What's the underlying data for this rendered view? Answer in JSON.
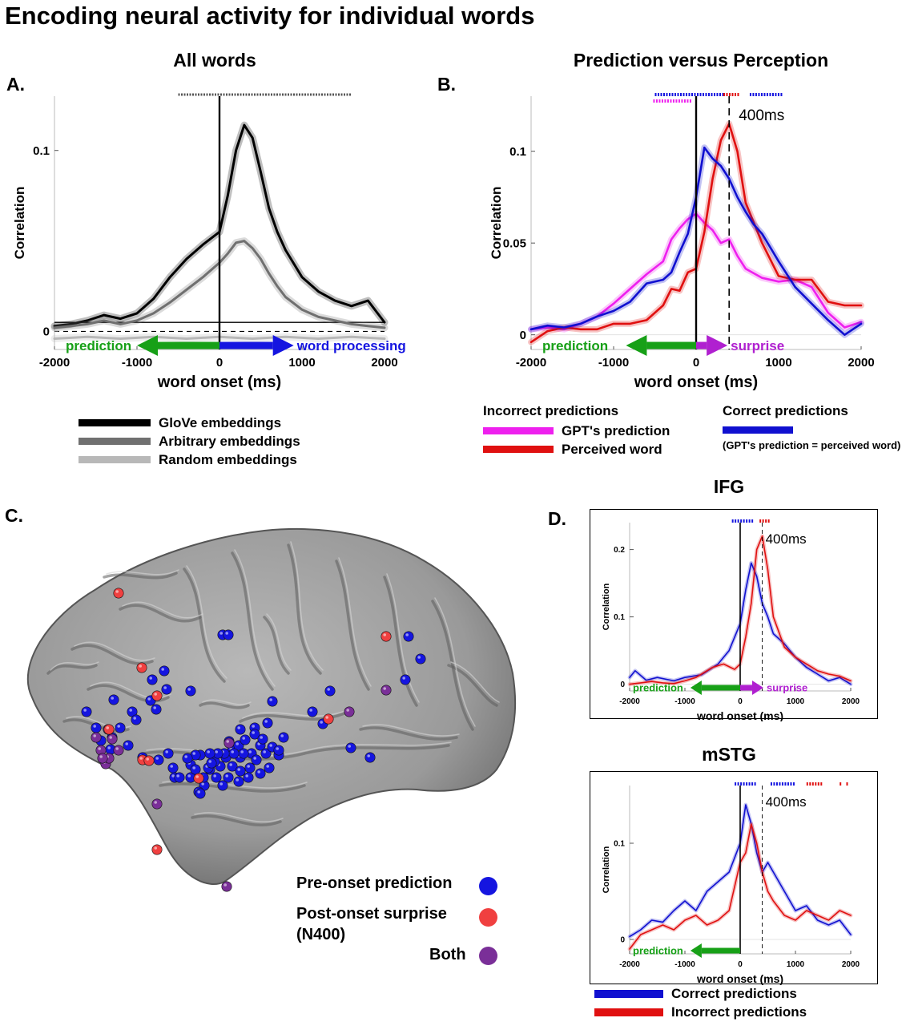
{
  "figure": {
    "title": "Encoding neural activity for individual words",
    "panel_labels": [
      "A.",
      "B.",
      "C.",
      "D."
    ]
  },
  "legends": {
    "a": [
      {
        "label": "GloVe embeddings",
        "color": "#000000"
      },
      {
        "label": "Arbitrary embeddings",
        "color": "#707070"
      },
      {
        "label": "Random embeddings",
        "color": "#b8b8b8"
      }
    ],
    "b_incorrect_header": "Incorrect predictions",
    "b_incorrect": [
      {
        "label": "GPT's prediction",
        "color": "#ee20ee"
      },
      {
        "label": "Perceived word",
        "color": "#e01010"
      }
    ],
    "b_correct_header": "Correct predictions",
    "b_correct_color": "#1010d0",
    "b_correct_note": "(GPT's prediction = perceived word)",
    "d": [
      {
        "label": "Correct predictions",
        "color": "#1010d0"
      },
      {
        "label": "Incorrect predictions",
        "color": "#e01010"
      }
    ]
  },
  "brain_legend": [
    {
      "label": "Pre-onset prediction",
      "color": "#1515e0"
    },
    {
      "label": "Post-onset surprise",
      "color": "#f04040"
    },
    {
      "label": "(N400)",
      "color": ""
    },
    {
      "label": "Both",
      "color": "#7a2f98"
    }
  ],
  "electrodes": {
    "note": "electrode markers on brain surface",
    "blue_count": 82,
    "red_count": 10,
    "purple_count": 13
  },
  "chart_data": [
    {
      "id": "a",
      "type": "line",
      "title": "All words",
      "xlabel": "word onset (ms)",
      "ylabel": "Correlation",
      "xlim": [
        -2000,
        2000
      ],
      "ylim": [
        -0.01,
        0.13
      ],
      "xticks": [
        -2000,
        -1000,
        0,
        1000,
        2000
      ],
      "yticks": [
        0,
        0.1
      ],
      "ytick_labels": [
        "0",
        "0.1"
      ],
      "onset_line": 0,
      "zero_dashed": true,
      "arrows": [
        {
          "label": "prediction",
          "direction": "left",
          "color": "#17a017",
          "from": 0,
          "to": -1000
        },
        {
          "label": "word processing",
          "direction": "right",
          "color": "#1515e0",
          "from": 0,
          "to": 900
        }
      ],
      "significance": [
        {
          "color": "#555555",
          "from": -500,
          "to": 1600
        }
      ],
      "series": [
        {
          "name": "GloVe embeddings",
          "color": "#000000",
          "x": [
            -2000,
            -1800,
            -1600,
            -1400,
            -1200,
            -1000,
            -800,
            -600,
            -400,
            -200,
            0,
            100,
            200,
            300,
            400,
            500,
            600,
            700,
            800,
            1000,
            1200,
            1400,
            1600,
            1800,
            2000
          ],
          "y": [
            0.003,
            0.004,
            0.006,
            0.009,
            0.007,
            0.01,
            0.018,
            0.03,
            0.04,
            0.048,
            0.055,
            0.075,
            0.1,
            0.114,
            0.107,
            0.088,
            0.068,
            0.055,
            0.045,
            0.03,
            0.022,
            0.017,
            0.014,
            0.017,
            0.005
          ]
        },
        {
          "name": "Arbitrary embeddings",
          "color": "#707070",
          "x": [
            -2000,
            -1800,
            -1600,
            -1400,
            -1200,
            -1000,
            -800,
            -600,
            -400,
            -200,
            0,
            100,
            200,
            300,
            400,
            500,
            600,
            700,
            800,
            1000,
            1200,
            1400,
            1600,
            1800,
            2000
          ],
          "y": [
            0.002,
            0.003,
            0.004,
            0.006,
            0.004,
            0.006,
            0.01,
            0.016,
            0.023,
            0.03,
            0.038,
            0.043,
            0.049,
            0.05,
            0.046,
            0.04,
            0.032,
            0.025,
            0.019,
            0.012,
            0.008,
            0.006,
            0.004,
            0.003,
            0.002
          ]
        },
        {
          "name": "Random embeddings",
          "color": "#b8b8b8",
          "x": [
            -2000,
            -1600,
            -1200,
            -800,
            -400,
            0,
            400,
            800,
            1200,
            1600,
            2000
          ],
          "y": [
            -0.004,
            -0.003,
            -0.004,
            -0.003,
            -0.004,
            -0.003,
            -0.004,
            -0.003,
            -0.004,
            -0.003,
            -0.004
          ]
        }
      ]
    },
    {
      "id": "b",
      "type": "line",
      "title": "Prediction versus Perception",
      "xlabel": "word onset (ms)",
      "ylabel": "Correlation",
      "xlim": [
        -2000,
        2000
      ],
      "ylim": [
        -0.008,
        0.13
      ],
      "xticks": [
        -2000,
        -1000,
        0,
        1000,
        2000
      ],
      "yticks": [
        0,
        0.05,
        0.1
      ],
      "ytick_labels": [
        "0",
        "0.05",
        "0.1"
      ],
      "onset_line": 0,
      "marker_line": {
        "x": 400,
        "label": "400ms"
      },
      "arrows": [
        {
          "label": "prediction",
          "direction": "left",
          "color": "#17a017",
          "from": 0,
          "to": -850
        },
        {
          "label": "surprise",
          "direction": "right",
          "color": "#b020d0",
          "from": 0,
          "to": 380
        }
      ],
      "significance": [
        {
          "color": "#1515e0",
          "from": -500,
          "to": 350
        },
        {
          "color": "#e01010",
          "from": 330,
          "to": 520
        },
        {
          "color": "#1515e0",
          "from": 650,
          "to": 1050
        },
        {
          "color": "#ee20ee",
          "from": -520,
          "to": -50
        }
      ],
      "series": [
        {
          "name": "GPT's prediction",
          "color": "#ee20ee",
          "x": [
            -2000,
            -1800,
            -1600,
            -1400,
            -1200,
            -1000,
            -800,
            -600,
            -400,
            -300,
            -200,
            -100,
            0,
            100,
            200,
            300,
            400,
            500,
            600,
            800,
            1000,
            1200,
            1400,
            1600,
            1800,
            2000
          ],
          "y": [
            0.003,
            0.004,
            0.003,
            0.006,
            0.01,
            0.017,
            0.025,
            0.033,
            0.04,
            0.052,
            0.058,
            0.063,
            0.066,
            0.061,
            0.057,
            0.05,
            0.052,
            0.043,
            0.036,
            0.031,
            0.029,
            0.03,
            0.026,
            0.012,
            0.004,
            0.007
          ]
        },
        {
          "name": "Perceived word",
          "color": "#e01010",
          "x": [
            -2000,
            -1800,
            -1600,
            -1400,
            -1200,
            -1000,
            -800,
            -600,
            -400,
            -300,
            -200,
            -100,
            0,
            100,
            200,
            300,
            400,
            500,
            600,
            800,
            1000,
            1200,
            1400,
            1600,
            1800,
            2000
          ],
          "y": [
            -0.004,
            0.002,
            0.004,
            0.003,
            0.003,
            0.006,
            0.006,
            0.008,
            0.016,
            0.025,
            0.024,
            0.034,
            0.036,
            0.056,
            0.085,
            0.106,
            0.115,
            0.1,
            0.072,
            0.05,
            0.032,
            0.03,
            0.03,
            0.018,
            0.016,
            0.016
          ]
        },
        {
          "name": "Correct predictions",
          "color": "#1010d0",
          "x": [
            -2000,
            -1800,
            -1600,
            -1400,
            -1200,
            -1000,
            -800,
            -600,
            -400,
            -300,
            -200,
            -100,
            0,
            100,
            200,
            300,
            400,
            500,
            600,
            700,
            800,
            1000,
            1200,
            1400,
            1600,
            1800,
            2000
          ],
          "y": [
            0.003,
            0.005,
            0.004,
            0.006,
            0.01,
            0.013,
            0.018,
            0.028,
            0.03,
            0.034,
            0.045,
            0.055,
            0.075,
            0.102,
            0.096,
            0.092,
            0.085,
            0.075,
            0.067,
            0.06,
            0.055,
            0.04,
            0.026,
            0.017,
            0.008,
            0.0,
            0.006
          ]
        }
      ]
    },
    {
      "id": "d1",
      "type": "line",
      "title": "IFG",
      "xlabel": "word onset (ms)",
      "ylabel": "Correlation",
      "xlim": [
        -2000,
        2000
      ],
      "ylim": [
        -0.01,
        0.24
      ],
      "xticks": [
        -2000,
        -1000,
        0,
        1000,
        2000
      ],
      "yticks": [
        0,
        0.1,
        0.2
      ],
      "ytick_labels": [
        "0",
        "0.1",
        "0.2"
      ],
      "onset_line": 0,
      "marker_line": {
        "x": 400,
        "label": "400ms"
      },
      "arrows": [
        {
          "label": "prediction",
          "direction": "left",
          "color": "#17a017",
          "from": 0,
          "to": -900
        },
        {
          "label": "surprise",
          "direction": "right",
          "color": "#b020d0",
          "from": 0,
          "to": 420
        }
      ],
      "significance": [
        {
          "color": "#1515e0",
          "from": -150,
          "to": 250
        },
        {
          "color": "#e01010",
          "from": 350,
          "to": 550
        }
      ],
      "series": [
        {
          "name": "Correct predictions",
          "color": "#1010d0",
          "x": [
            -2000,
            -1900,
            -1700,
            -1500,
            -1200,
            -1000,
            -700,
            -400,
            -200,
            0,
            100,
            200,
            300,
            400,
            500,
            600,
            800,
            1000,
            1200,
            1400,
            1600,
            1800,
            2000
          ],
          "y": [
            0.01,
            0.02,
            0.006,
            0.01,
            0.005,
            0.01,
            0.014,
            0.03,
            0.05,
            0.09,
            0.14,
            0.18,
            0.16,
            0.12,
            0.1,
            0.075,
            0.06,
            0.04,
            0.025,
            0.015,
            0.005,
            0.01,
            0.0
          ]
        },
        {
          "name": "Incorrect predictions",
          "color": "#e01010",
          "x": [
            -2000,
            -1800,
            -1600,
            -1400,
            -1200,
            -1000,
            -800,
            -500,
            -300,
            -100,
            0,
            100,
            200,
            300,
            400,
            500,
            600,
            800,
            1000,
            1200,
            1400,
            1600,
            1800,
            2000
          ],
          "y": [
            0.0,
            0.002,
            0.004,
            0.002,
            0.001,
            0.005,
            0.01,
            0.025,
            0.03,
            0.022,
            0.03,
            0.07,
            0.12,
            0.2,
            0.22,
            0.17,
            0.1,
            0.055,
            0.04,
            0.03,
            0.02,
            0.015,
            0.012,
            0.005
          ]
        }
      ]
    },
    {
      "id": "d2",
      "type": "line",
      "title": "mSTG",
      "xlabel": "word onset (ms)",
      "ylabel": "Correlation",
      "xlim": [
        -2000,
        2000
      ],
      "ylim": [
        -0.015,
        0.16
      ],
      "xticks": [
        -2000,
        -1000,
        0,
        1000,
        2000
      ],
      "yticks": [
        0,
        0.1
      ],
      "ytick_labels": [
        "0",
        "0.1"
      ],
      "onset_line": 0,
      "marker_line": {
        "x": 400,
        "label": "400ms"
      },
      "arrows": [
        {
          "label": "prediction",
          "direction": "left",
          "color": "#17a017",
          "from": 0,
          "to": -900
        }
      ],
      "significance": [
        {
          "color": "#1515e0",
          "from": -100,
          "to": 300
        },
        {
          "color": "#1515e0",
          "from": 550,
          "to": 1000
        },
        {
          "color": "#e01010",
          "from": 1200,
          "to": 1500
        },
        {
          "color": "#e01010",
          "from": 1800,
          "to": 1810
        },
        {
          "color": "#e01010",
          "from": 1920,
          "to": 1930
        }
      ],
      "series": [
        {
          "name": "Correct predictions",
          "color": "#1010d0",
          "x": [
            -2000,
            -1800,
            -1600,
            -1400,
            -1200,
            -1000,
            -800,
            -600,
            -400,
            -200,
            0,
            100,
            200,
            300,
            400,
            500,
            600,
            800,
            1000,
            1200,
            1400,
            1600,
            1800,
            2000
          ],
          "y": [
            0.003,
            0.01,
            0.02,
            0.018,
            0.03,
            0.04,
            0.03,
            0.05,
            0.06,
            0.07,
            0.1,
            0.14,
            0.12,
            0.09,
            0.07,
            0.08,
            0.07,
            0.05,
            0.03,
            0.035,
            0.02,
            0.015,
            0.02,
            0.005
          ]
        },
        {
          "name": "Incorrect predictions",
          "color": "#e01010",
          "x": [
            -2000,
            -1800,
            -1600,
            -1400,
            -1200,
            -1000,
            -800,
            -600,
            -400,
            -200,
            0,
            100,
            200,
            300,
            400,
            500,
            600,
            800,
            1000,
            1200,
            1400,
            1600,
            1800,
            2000
          ],
          "y": [
            -0.01,
            0.005,
            0.01,
            0.015,
            0.01,
            0.02,
            0.025,
            0.015,
            0.02,
            0.03,
            0.08,
            0.09,
            0.12,
            0.1,
            0.07,
            0.05,
            0.04,
            0.025,
            0.02,
            0.03,
            0.025,
            0.02,
            0.03,
            0.025
          ]
        }
      ]
    }
  ]
}
